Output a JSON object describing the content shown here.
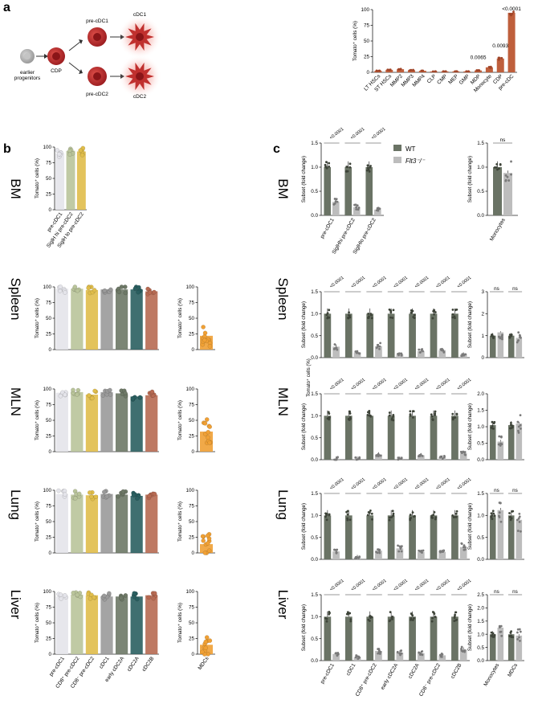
{
  "panel_labels": {
    "a": "a",
    "b": "b",
    "c": "c"
  },
  "schematic": {
    "earlier_progenitors": "earlier\nprogenitors",
    "cdp": "CDP",
    "pre_cdc1": "pre-cDC1",
    "pre_cdc2": "pre-cDC2",
    "cdc1": "cDC1",
    "cdc2": "cDC2"
  },
  "tomato_axis_label": "Tomato⁺ cells (%)",
  "fold_axis_label": "Subset (fold change)",
  "mln_extra_label": "Tomato⁺ cells (%)",
  "legend": {
    "wt": "WT",
    "ko": "Flt3⁻/⁻"
  },
  "rows": {
    "bm": "BM",
    "spleen": "Spleen",
    "mln": "MLN",
    "lung": "Lung",
    "liver": "Liver"
  },
  "colors": {
    "pre_cDC1": "#e4e4ea",
    "cd8_pre_cDC2": "#b9c49a",
    "cd8_pre_cDC2_b": "#e0bd4a",
    "cDC1": "#9a9a9a",
    "early_cDC2A": "#6d7866",
    "cDC2A": "#2a5f60",
    "cDC2B": "#b76a52",
    "mdc": "#f0a034",
    "wt": "#6a7365",
    "ko": "#bdbdbd",
    "progenitor_bar": "#bf5f3c",
    "cdp_cell": "#c0302e",
    "earlier_cell": "#b0b0b0"
  },
  "chart_data": [
    {
      "id": "a-progenitors",
      "type": "bar",
      "categories": [
        "LT HSCs",
        "ST HSCs",
        "MMP2",
        "MMP3",
        "MMP4",
        "CLP",
        "CMP",
        "MEP",
        "GMP",
        "MDP",
        "Monocyte",
        "CDP",
        "pre-cDC"
      ],
      "values": [
        2.5,
        4,
        5,
        3.5,
        2.5,
        1.5,
        1.5,
        1.5,
        1.5,
        3,
        8,
        22,
        95
      ],
      "annotations": [
        {
          "category": "MDP",
          "text": "0.0065"
        },
        {
          "category": "CDP",
          "text": "0.0093"
        },
        {
          "category": "pre-cDC",
          "text": "<0.0001"
        }
      ],
      "ylabel": "Tomato⁺ cells (%)",
      "ylim": [
        0,
        100
      ],
      "yticks": [
        0,
        25,
        50,
        75,
        100
      ]
    },
    {
      "id": "b-bm",
      "type": "bar",
      "categories": [
        "pre-cDC1",
        "SiglH hi pre-cDC2",
        "SiglH lo pre-cDC2"
      ],
      "values": [
        90,
        94,
        93
      ],
      "ylabel": "Tomato⁺ cells (%)",
      "ylim": [
        0,
        100
      ],
      "yticks": [
        0,
        25,
        50,
        75,
        100
      ]
    },
    {
      "id": "b-spleen",
      "type": "bar",
      "categories": [
        "pre-cDC1",
        "CD8⁺ pre-cDC2",
        "CD8⁻ pre-cDC2",
        "cDC1",
        "early cDC2A",
        "cDC2A",
        "cDC2B"
      ],
      "values": [
        97,
        97,
        95,
        96,
        96,
        96,
        93
      ],
      "ylabel": "Tomato⁺ cells (%)",
      "ylim": [
        0,
        100
      ],
      "yticks": [
        0,
        25,
        50,
        75,
        100
      ]
    },
    {
      "id": "b-spleen-mdc",
      "type": "bar",
      "categories": [
        "MDCs"
      ],
      "values": [
        22
      ],
      "ylabel": "Tomato⁺ cells (%)",
      "ylim": [
        0,
        100
      ],
      "yticks": [
        0,
        25,
        50,
        75,
        100
      ]
    },
    {
      "id": "b-mln",
      "type": "bar",
      "categories": [
        "pre-cDC1",
        "CD8⁺ pre-cDC2",
        "CD8⁻ pre-cDC2",
        "cDC1",
        "early cDC2A",
        "cDC2A",
        "cDC2B"
      ],
      "values": [
        94,
        95,
        91,
        95,
        93,
        88,
        90
      ],
      "ylabel": "Tomato⁺ cells (%)",
      "ylim": [
        0,
        100
      ],
      "yticks": [
        0,
        25,
        50,
        75,
        100
      ]
    },
    {
      "id": "b-mln-mdc",
      "type": "bar",
      "categories": [
        "MDCs"
      ],
      "values": [
        32
      ],
      "ylabel": "Tomato⁺ cells (%)",
      "ylim": [
        0,
        100
      ],
      "yticks": [
        0,
        25,
        50,
        75,
        100
      ]
    },
    {
      "id": "b-lung",
      "type": "bar",
      "categories": [
        "pre-cDC1",
        "CD8⁺ pre-cDC2",
        "CD8⁻ pre-cDC2",
        "cDC1",
        "early cDC2A",
        "cDC2A",
        "cDC2B"
      ],
      "values": [
        94,
        93,
        92,
        94,
        93,
        91,
        93
      ],
      "ylabel": "Tomato⁺ cells (%)",
      "ylim": [
        0,
        100
      ],
      "yticks": [
        0,
        25,
        50,
        75,
        100
      ]
    },
    {
      "id": "b-lung-mdc",
      "type": "bar",
      "categories": [
        "MDCs"
      ],
      "values": [
        14
      ],
      "ylabel": "Tomato⁺ cells (%)",
      "ylim": [
        0,
        100
      ],
      "yticks": [
        0,
        25,
        50,
        75,
        100
      ]
    },
    {
      "id": "b-liver",
      "type": "bar",
      "categories": [
        "pre-cDC1",
        "CD8⁺ pre-cDC2",
        "CD8⁻ pre-cDC2",
        "cDC1",
        "early cDC2A",
        "cDC2A",
        "cDC2B"
      ],
      "values": [
        92,
        95,
        94,
        92,
        92,
        92,
        94
      ],
      "ylabel": "Tomato⁺ cells (%)",
      "ylim": [
        0,
        100
      ],
      "yticks": [
        0,
        25,
        50,
        75,
        100
      ]
    },
    {
      "id": "b-liver-mdc",
      "type": "bar",
      "categories": [
        "MDCs"
      ],
      "values": [
        15
      ],
      "ylabel": "Tomato⁺ cells (%)",
      "ylim": [
        0,
        100
      ],
      "yticks": [
        0,
        25,
        50,
        75,
        100
      ]
    },
    {
      "id": "c-bm",
      "type": "bar",
      "categories": [
        "pre-cDC1",
        "SiglH hi pre-cDC2",
        "SiglH lo pre-cDC2"
      ],
      "series": [
        {
          "name": "WT",
          "values": [
            1.0,
            1.0,
            1.0
          ]
        },
        {
          "name": "Flt3⁻/⁻",
          "values": [
            0.28,
            0.17,
            0.12
          ]
        }
      ],
      "pvalues": [
        "<0.0001",
        "<0.0001",
        "<0.0001"
      ],
      "ylabel": "Subset (fold change)",
      "ylim": [
        0,
        1.5
      ],
      "yticks": [
        0,
        0.5,
        1.0,
        1.5
      ]
    },
    {
      "id": "c-bm-mono",
      "type": "bar",
      "categories": [
        "Monocytes"
      ],
      "series": [
        {
          "name": "WT",
          "values": [
            1.0
          ]
        },
        {
          "name": "Flt3⁻/⁻",
          "values": [
            0.88
          ]
        }
      ],
      "pvalues": [
        "ns"
      ],
      "ylabel": "Subset (fold change)",
      "ylim": [
        0,
        1.5
      ],
      "yticks": [
        0,
        0.5,
        1.0,
        1.5
      ]
    },
    {
      "id": "c-spleen",
      "type": "bar",
      "categories": [
        "pre-cDC1",
        "cDC1",
        "CD8⁺ pre-cDC2",
        "early cDC2A",
        "cDC2A",
        "CD8⁻ pre-cDC2",
        "cDC2B"
      ],
      "series": [
        {
          "name": "WT",
          "values": [
            1.0,
            1.0,
            1.0,
            1.0,
            1.0,
            1.0,
            1.0
          ]
        },
        {
          "name": "Flt3⁻/⁻",
          "values": [
            0.25,
            0.12,
            0.26,
            0.07,
            0.15,
            0.17,
            0.07
          ]
        }
      ],
      "pvalues": [
        "<0.0001",
        "<0.0001",
        "<0.0001",
        "<0.0001",
        "<0.0001",
        "<0.0001",
        "<0.0001"
      ],
      "ylabel": "Subset (fold change)",
      "ylim": [
        0,
        1.5
      ],
      "yticks": [
        0,
        0.5,
        1.0,
        1.5
      ]
    },
    {
      "id": "c-spleen-mono",
      "type": "bar",
      "categories": [
        "Monocytes",
        "MDCs"
      ],
      "series": [
        {
          "name": "WT",
          "values": [
            1.0,
            1.0
          ]
        },
        {
          "name": "Flt3⁻/⁻",
          "values": [
            1.15,
            0.9
          ]
        }
      ],
      "pvalues": [
        "ns",
        "ns"
      ],
      "ylabel": "Subset (fold change)",
      "ylim": [
        0,
        3
      ],
      "yticks": [
        0,
        1,
        2,
        3
      ]
    },
    {
      "id": "c-mln",
      "type": "bar",
      "categories": [
        "pre-cDC1",
        "cDC1",
        "CD8⁺ pre-cDC2",
        "early cDC2A",
        "cDC2A",
        "CD8⁻ pre-cDC2",
        "cDC2B"
      ],
      "series": [
        {
          "name": "WT",
          "values": [
            1.0,
            1.0,
            1.0,
            1.0,
            1.0,
            1.0,
            1.0
          ]
        },
        {
          "name": "Flt3⁻/⁻",
          "values": [
            0.02,
            0.02,
            0.12,
            0.02,
            0.1,
            0.05,
            0.15
          ]
        }
      ],
      "pvalues": [
        "<0.0001",
        "<0.0001",
        "<0.0001",
        "<0.0001",
        "<0.0001",
        "<0.0001",
        "<0.0001"
      ],
      "ylabel": "Subset (fold change)",
      "ylim": [
        0,
        1.5
      ],
      "yticks": [
        0,
        0.5,
        1.0,
        1.5
      ]
    },
    {
      "id": "c-mln-mono",
      "type": "bar",
      "categories": [
        "Monocytes",
        "MDCs"
      ],
      "series": [
        {
          "name": "WT",
          "values": [
            1.05,
            1.05
          ]
        },
        {
          "name": "Flt3⁻/⁻",
          "values": [
            0.55,
            1.1
          ]
        }
      ],
      "pvalues": [
        "",
        ""
      ],
      "ylabel": "Subset (fold change)",
      "ylim": [
        0,
        2.0
      ],
      "yticks": [
        0,
        0.5,
        1.0,
        1.5,
        2.0
      ]
    },
    {
      "id": "c-lung",
      "type": "bar",
      "categories": [
        "pre-cDC1",
        "cDC1",
        "CD8⁺ pre-cDC2",
        "early cDC2A",
        "cDC2A",
        "CD8⁻ pre-cDC2",
        "cDC2B"
      ],
      "series": [
        {
          "name": "WT",
          "values": [
            1.0,
            1.0,
            1.0,
            1.0,
            1.0,
            1.0,
            1.0
          ]
        },
        {
          "name": "Flt3⁻/⁻",
          "values": [
            0.18,
            0.05,
            0.2,
            0.25,
            0.17,
            0.17,
            0.28
          ]
        }
      ],
      "pvalues": [
        "<0.0001",
        "<0.0001",
        "<0.0001",
        "<0.0001",
        "<0.0001",
        "<0.0001",
        "<0.0001"
      ],
      "ylabel": "Subset (fold change)",
      "ylim": [
        0,
        1.5
      ],
      "yticks": [
        0,
        0.5,
        1.0,
        1.5
      ]
    },
    {
      "id": "c-lung-mono",
      "type": "bar",
      "categories": [
        "Monocytes",
        "MDCs"
      ],
      "series": [
        {
          "name": "WT",
          "values": [
            1.0,
            1.0
          ]
        },
        {
          "name": "Flt3⁻/⁻",
          "values": [
            1.12,
            0.9
          ]
        }
      ],
      "pvalues": [
        "ns",
        "ns"
      ],
      "ylabel": "Subset (fold change)",
      "ylim": [
        0,
        1.5
      ],
      "yticks": [
        0,
        0.5,
        1.0,
        1.5
      ]
    },
    {
      "id": "c-liver",
      "type": "bar",
      "categories": [
        "pre-cDC1",
        "cDC1",
        "CD8⁺ pre-cDC2",
        "early cDC2A",
        "cDC2A",
        "CD8⁻ pre-cDC2",
        "cDC2B"
      ],
      "series": [
        {
          "name": "WT",
          "values": [
            1.0,
            1.0,
            1.0,
            1.0,
            1.0,
            1.0,
            1.0
          ]
        },
        {
          "name": "Flt3⁻/⁻",
          "values": [
            0.15,
            0.08,
            0.22,
            0.18,
            0.17,
            0.12,
            0.25
          ]
        }
      ],
      "pvalues": [
        "<0.0001",
        "<0.0001",
        "<0.0001",
        "<0.0001",
        "<0.0001",
        "<0.0001",
        "<0.0001"
      ],
      "ylabel": "Subset (fold change)",
      "ylim": [
        0,
        1.5
      ],
      "yticks": [
        0,
        0.5,
        1.0,
        1.5
      ]
    },
    {
      "id": "c-liver-mono",
      "type": "bar",
      "categories": [
        "Monocytes",
        "MDCs"
      ],
      "series": [
        {
          "name": "WT",
          "values": [
            1.0,
            1.0
          ]
        },
        {
          "name": "Flt3⁻/⁻",
          "values": [
            1.25,
            0.95
          ]
        }
      ],
      "pvalues": [
        "ns",
        "ns"
      ],
      "ylabel": "Subset (fold change)",
      "ylim": [
        0,
        2.5
      ],
      "yticks": [
        0,
        0.5,
        1.0,
        1.5,
        2.0,
        2.5
      ]
    }
  ]
}
